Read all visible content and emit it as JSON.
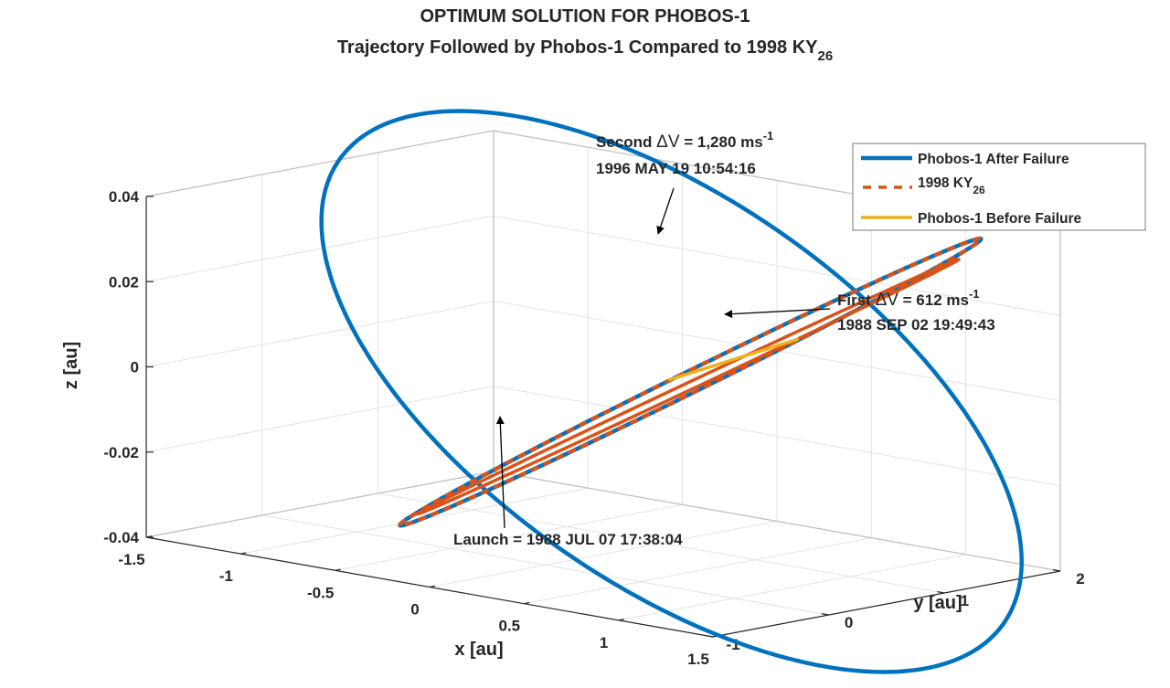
{
  "chart_data": {
    "type": "line3d",
    "title_line1": "OPTIMUM SOLUTION FOR PHOBOS-1",
    "title_line2_main": "Trajectory Followed by Phobos-1 Compared to 1998 KY",
    "title_line2_sub": "26",
    "xlabel": "x [au]",
    "ylabel": "y [au]",
    "zlabel": "z [au]",
    "xlim": [
      -1.5,
      1.5
    ],
    "ylim": [
      -1,
      2
    ],
    "zlim": [
      -0.04,
      0.04
    ],
    "x_ticks": [
      "-1.5",
      "-1",
      "-0.5",
      "0",
      "0.5",
      "1",
      "1.5"
    ],
    "y_ticks": [
      "-1",
      "0",
      "1",
      "2"
    ],
    "z_ticks": [
      "-0.04",
      "-0.02",
      "0",
      "0.02",
      "0.04"
    ],
    "grid": true,
    "legend_position": "top-right",
    "series": [
      {
        "name": "Phobos-1 After Failure",
        "name_sub": "",
        "color": "#0072BD",
        "style": "solid"
      },
      {
        "name": "1998 KY",
        "name_sub": "26",
        "color": "#D95319",
        "style": "dashed"
      },
      {
        "name": "Phobos-1 Before Failure",
        "name_sub": "",
        "color": "#EDB120",
        "style": "solid"
      }
    ],
    "annotations": {
      "second_dv": {
        "label": "Second ",
        "delta": "ΔV",
        "value": " = 1,280 ms",
        "exp": "-1",
        "date": "1996 MAY 19 10:54:16"
      },
      "first_dv": {
        "label": "First ",
        "delta": "ΔV",
        "value": " = 612 ms",
        "exp": "-1",
        "date": "1988 SEP 02 19:49:43"
      },
      "launch": {
        "text": "Launch = 1988 JUL 07 17:38:04"
      }
    }
  }
}
